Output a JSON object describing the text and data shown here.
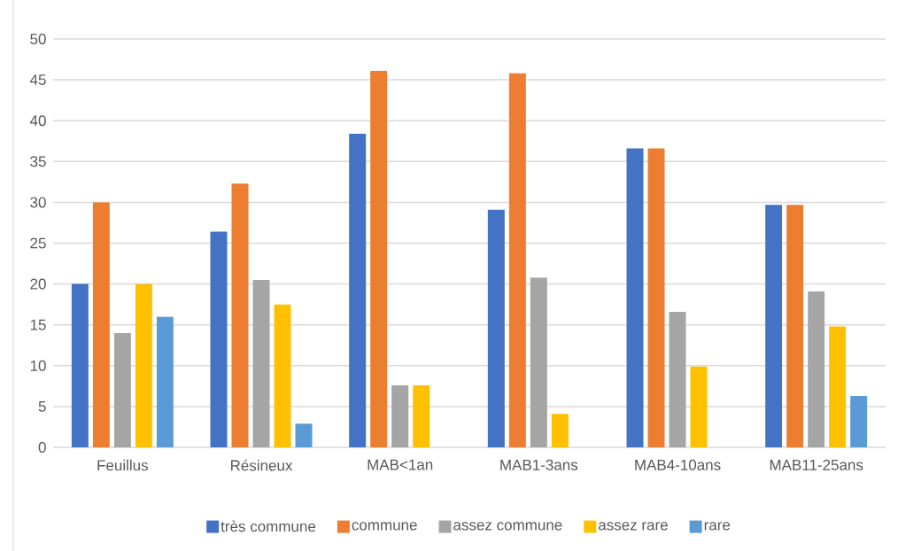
{
  "chart_data": {
    "type": "bar",
    "categories": [
      "Feuillus",
      "Résineux",
      "MAB<1an",
      "MAB1-3ans",
      "MAB4-10ans",
      "MAB11-25ans"
    ],
    "series": [
      {
        "name": "très commune",
        "color": "#4472c4",
        "values": [
          20,
          26.4,
          38.4,
          29.1,
          36.6,
          29.7
        ]
      },
      {
        "name": "commune",
        "color": "#ed7d31",
        "values": [
          30,
          32.3,
          46.1,
          45.8,
          36.6,
          29.7
        ]
      },
      {
        "name": "assez commune",
        "color": "#a5a5a5",
        "values": [
          14,
          20.5,
          7.6,
          20.8,
          16.6,
          19.1
        ]
      },
      {
        "name": "assez rare",
        "color": "#ffc000",
        "values": [
          20,
          17.5,
          7.6,
          4.1,
          9.9,
          14.8
        ]
      },
      {
        "name": "rare",
        "color": "#5b9bd5",
        "values": [
          16,
          2.9,
          null,
          null,
          null,
          6.3
        ]
      }
    ],
    "ylim": [
      0,
      50
    ],
    "yticks": [
      0,
      5,
      10,
      15,
      20,
      25,
      30,
      35,
      40,
      45,
      50
    ],
    "grid": "y",
    "legend": "bottom"
  }
}
